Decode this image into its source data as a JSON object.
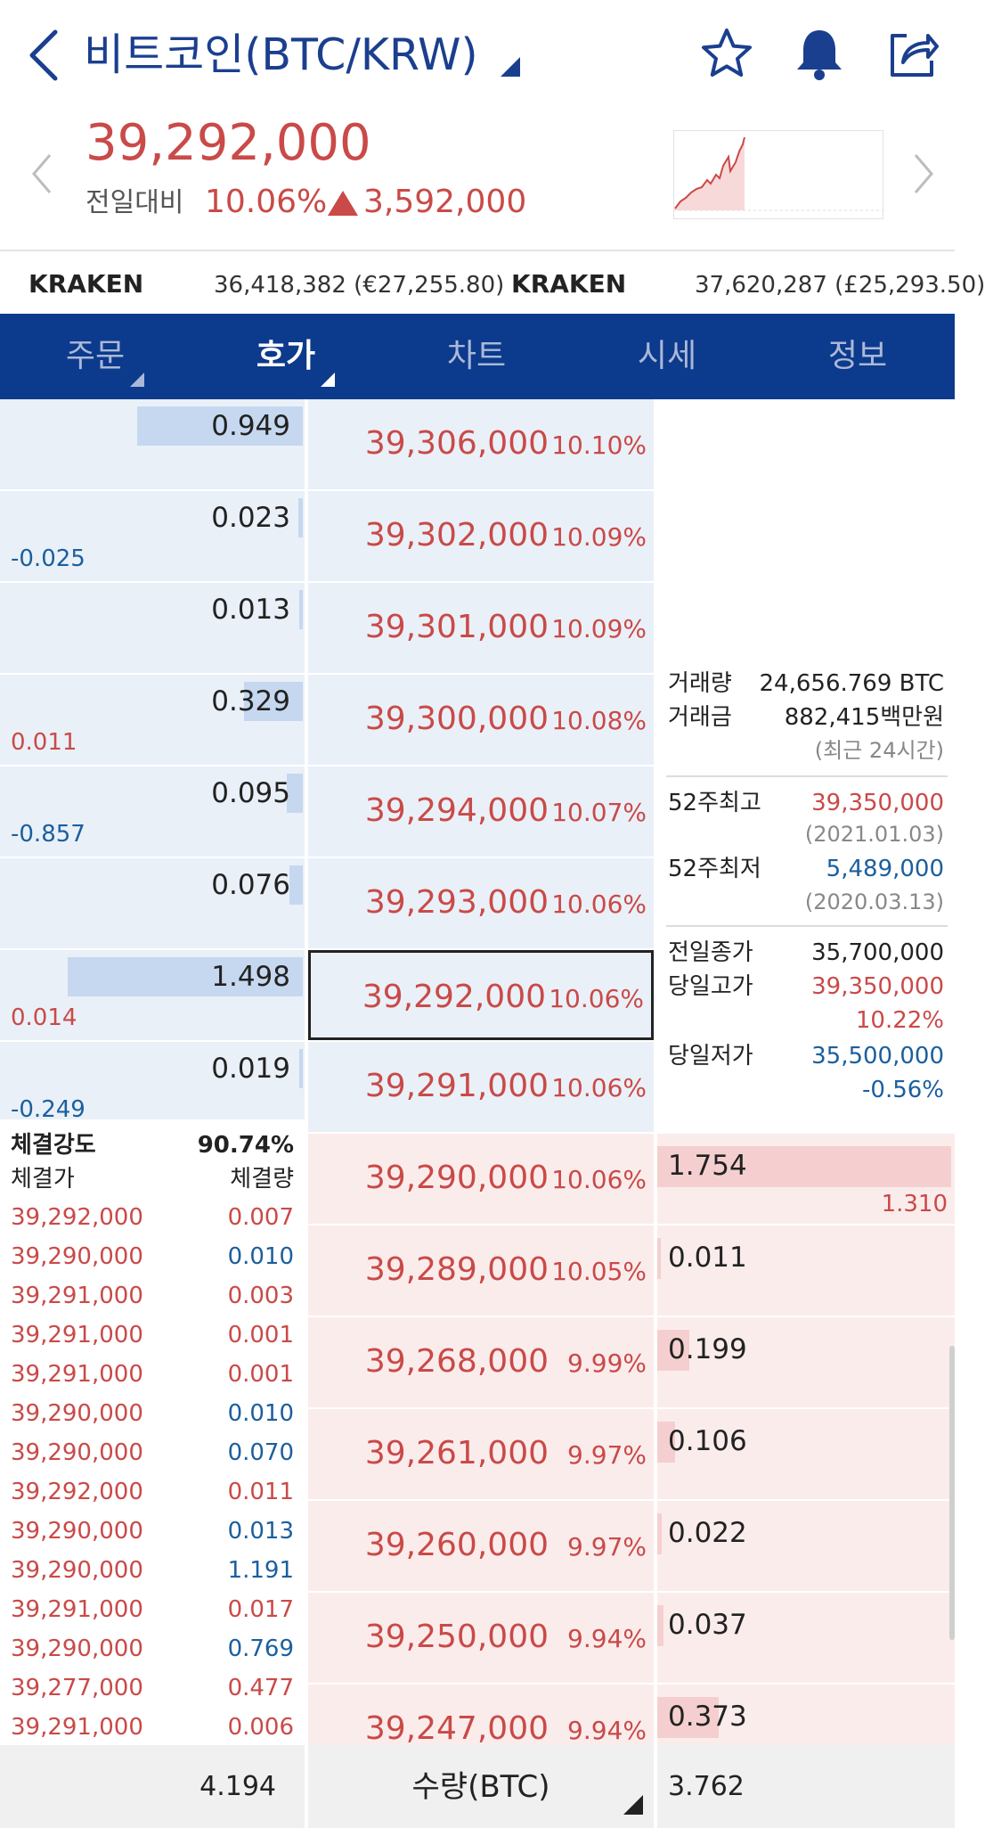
{
  "header": {
    "title": "비트코인(BTC/KRW)",
    "current_price": "39,292,000",
    "compare_label": "전일대비",
    "change_rate": "10.06%",
    "change_amount": "3,592,000"
  },
  "icons": {
    "back": "back-chevron-icon",
    "title_caret": "dropdown-caret-icon",
    "star": "star-icon",
    "bell": "bell-icon",
    "share": "share-icon",
    "prev": "chevron-left-icon",
    "next": "chevron-right-icon"
  },
  "colors": {
    "up": "#c94a48",
    "down": "#1b5f9e",
    "tab_bg": "#0c3a8c",
    "ask_bg": "#eaf0f8",
    "bid_bg": "#fbecec"
  },
  "exchanges": [
    {
      "name": "KRAKEN",
      "value": "36,418,382 (€27,255.80)"
    },
    {
      "name": "KRAKEN",
      "value": "37,620,287 (£25,293.50)"
    }
  ],
  "tabs": [
    {
      "label": "주문",
      "active": false
    },
    {
      "label": "호가",
      "active": true
    },
    {
      "label": "차트",
      "active": false
    },
    {
      "label": "시세",
      "active": false
    },
    {
      "label": "정보",
      "active": false
    }
  ],
  "asks": [
    {
      "qty": "0.949",
      "change": "",
      "bar": 0.62,
      "price": "39,306,000",
      "rate": "10.10%"
    },
    {
      "qty": "0.023",
      "change": "-0.025",
      "change_dir": "down",
      "bar": 0.015,
      "price": "39,302,000",
      "rate": "10.09%"
    },
    {
      "qty": "0.013",
      "change": "",
      "bar": 0.01,
      "price": "39,301,000",
      "rate": "10.09%"
    },
    {
      "qty": "0.329",
      "change": "0.011",
      "change_dir": "up",
      "bar": 0.22,
      "price": "39,300,000",
      "rate": "10.08%"
    },
    {
      "qty": "0.095",
      "change": "-0.857",
      "change_dir": "down",
      "bar": 0.06,
      "price": "39,294,000",
      "rate": "10.07%"
    },
    {
      "qty": "0.076",
      "change": "",
      "bar": 0.05,
      "price": "39,293,000",
      "rate": "10.06%"
    },
    {
      "qty": "1.498",
      "change": "0.014",
      "change_dir": "up",
      "bar": 0.88,
      "price": "39,292,000",
      "rate": "10.06%",
      "current": true
    },
    {
      "qty": "0.019",
      "change": "-0.249",
      "change_dir": "down",
      "bar": 0.012,
      "price": "39,291,000",
      "rate": "10.06%"
    }
  ],
  "bids": [
    {
      "qty": "1.754",
      "change": "1.310",
      "bar": 1.0,
      "price": "39,290,000",
      "rate": "10.06%"
    },
    {
      "qty": "0.011",
      "change": "",
      "bar": 0.01,
      "price": "39,289,000",
      "rate": "10.05%"
    },
    {
      "qty": "0.199",
      "change": "",
      "bar": 0.11,
      "price": "39,268,000",
      "rate": "9.99%"
    },
    {
      "qty": "0.106",
      "change": "",
      "bar": 0.06,
      "price": "39,261,000",
      "rate": "9.97%"
    },
    {
      "qty": "0.022",
      "change": "",
      "bar": 0.015,
      "price": "39,260,000",
      "rate": "9.97%"
    },
    {
      "qty": "0.037",
      "change": "",
      "bar": 0.022,
      "price": "39,250,000",
      "rate": "9.94%"
    },
    {
      "qty": "0.373",
      "change": "",
      "bar": 0.21,
      "price": "39,247,000",
      "rate": "9.94%"
    }
  ],
  "info": {
    "volume_label": "거래량",
    "volume_value": "24,656.769 BTC",
    "amount_label": "거래금",
    "amount_value": "882,415백만원",
    "recent_note": "(최근 24시간)",
    "high52_label": "52주최고",
    "high52_value": "39,350,000",
    "high52_date": "(2021.01.03)",
    "low52_label": "52주최저",
    "low52_value": "5,489,000",
    "low52_date": "(2020.03.13)",
    "prev_close_label": "전일종가",
    "prev_close_value": "35,700,000",
    "day_high_label": "당일고가",
    "day_high_value": "39,350,000",
    "day_high_rate": "10.22%",
    "day_low_label": "당일저가",
    "day_low_value": "35,500,000",
    "day_low_rate": "-0.56%"
  },
  "trades": {
    "strength_label": "체결강도",
    "strength_value": "90.74%",
    "price_header": "체결가",
    "qty_header": "체결량",
    "rows": [
      {
        "price": "39,292,000",
        "qty": "0.007",
        "dir": "up"
      },
      {
        "price": "39,290,000",
        "qty": "0.010",
        "dir": "down"
      },
      {
        "price": "39,291,000",
        "qty": "0.003",
        "dir": "up"
      },
      {
        "price": "39,291,000",
        "qty": "0.001",
        "dir": "up"
      },
      {
        "price": "39,291,000",
        "qty": "0.001",
        "dir": "up"
      },
      {
        "price": "39,290,000",
        "qty": "0.010",
        "dir": "down"
      },
      {
        "price": "39,290,000",
        "qty": "0.070",
        "dir": "down"
      },
      {
        "price": "39,292,000",
        "qty": "0.011",
        "dir": "up"
      },
      {
        "price": "39,290,000",
        "qty": "0.013",
        "dir": "down"
      },
      {
        "price": "39,290,000",
        "qty": "1.191",
        "dir": "down"
      },
      {
        "price": "39,291,000",
        "qty": "0.017",
        "dir": "up"
      },
      {
        "price": "39,290,000",
        "qty": "0.769",
        "dir": "down"
      },
      {
        "price": "39,277,000",
        "qty": "0.477",
        "dir": "up"
      },
      {
        "price": "39,291,000",
        "qty": "0.006",
        "dir": "up"
      }
    ]
  },
  "footer": {
    "ask_total": "4.194",
    "unit_label": "수량(BTC)",
    "bid_total": "3.762"
  }
}
